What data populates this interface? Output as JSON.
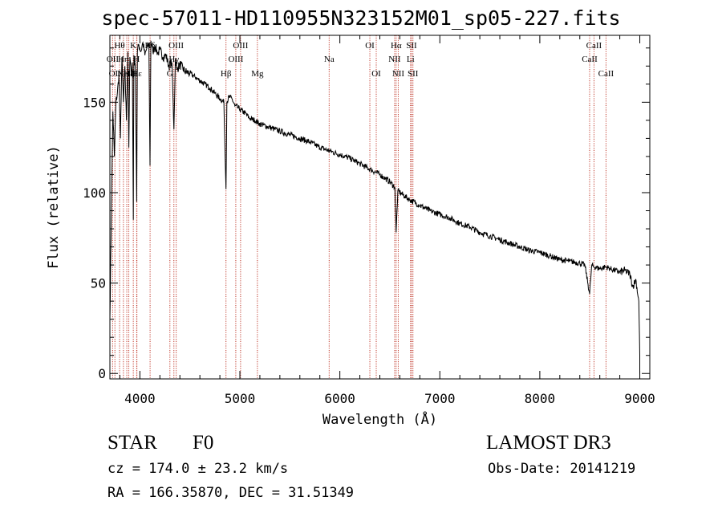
{
  "chart_data": {
    "type": "line",
    "title": "spec-57011-HD110955N323152M01_sp05-227.fits",
    "xlabel": "Wavelength (Å)",
    "ylabel": "Flux (relative)",
    "xlim": [
      3700,
      9100
    ],
    "ylim": [
      -3,
      187
    ],
    "x_ticks": [
      4000,
      5000,
      6000,
      7000,
      8000,
      9000
    ],
    "y_ticks": [
      0,
      50,
      100,
      150
    ],
    "series": [
      {
        "name": "flux",
        "x": [
          3700,
          3715,
          3730,
          3745,
          3760,
          3775,
          3790,
          3805,
          3820,
          3835,
          3850,
          3865,
          3880,
          3889,
          3900,
          3915,
          3925,
          3934,
          3940,
          3955,
          3968,
          3975,
          3990,
          4010,
          4030,
          4050,
          4070,
          4090,
          4101,
          4110,
          4130,
          4150,
          4180,
          4200,
          4230,
          4260,
          4290,
          4320,
          4340,
          4355,
          4370,
          4400,
          4450,
          4500,
          4550,
          4600,
          4650,
          4700,
          4750,
          4800,
          4840,
          4861,
          4870,
          4890,
          4920,
          4950,
          4980,
          5000,
          5050,
          5100,
          5150,
          5200,
          5300,
          5400,
          5500,
          5600,
          5700,
          5800,
          5900,
          6000,
          6100,
          6200,
          6300,
          6400,
          6500,
          6550,
          6563,
          6580,
          6650,
          6700,
          6800,
          6900,
          7000,
          7100,
          7200,
          7300,
          7400,
          7500,
          7600,
          7700,
          7800,
          7900,
          8000,
          8100,
          8200,
          8300,
          8400,
          8450,
          8498,
          8520,
          8542,
          8600,
          8662,
          8700,
          8800,
          8850,
          8900,
          8930,
          8960,
          8990,
          9000
        ],
        "y": [
          30,
          90,
          145,
          120,
          150,
          155,
          165,
          130,
          175,
          150,
          170,
          140,
          178,
          125,
          175,
          165,
          172,
          85,
          176,
          168,
          95,
          178,
          182,
          178,
          183,
          176,
          180,
          182,
          115,
          184,
          178,
          181,
          177,
          179,
          175,
          176,
          170,
          172,
          135,
          174,
          168,
          171,
          167,
          166,
          164,
          162,
          160,
          158,
          155,
          152,
          150,
          102,
          150,
          153,
          152,
          148,
          147,
          146,
          144,
          141,
          140,
          138,
          136,
          134,
          132,
          130,
          128,
          125,
          123,
          121,
          119,
          116,
          113,
          110,
          106,
          103,
          78,
          101,
          98,
          96,
          93,
          90,
          88,
          86,
          83,
          81,
          78,
          76,
          74,
          72,
          70,
          68,
          67,
          65,
          63,
          62,
          61,
          60,
          44,
          60,
          59,
          58,
          59,
          58,
          56,
          57,
          55,
          48,
          52,
          40,
          10
        ]
      }
    ],
    "lines": [
      {
        "wave": 3727,
        "label": "OII",
        "row": 1
      },
      {
        "wave": 3750,
        "label": "OII",
        "row": 2
      },
      {
        "wave": 3797,
        "label": "Hθ",
        "row": 0
      },
      {
        "wave": 3835,
        "label": "Hη",
        "row": 1
      },
      {
        "wave": 3869,
        "label": "NeIII",
        "row": 2
      },
      {
        "wave": 3889,
        "label": "Hζ",
        "row": 2
      },
      {
        "wave": 3934,
        "label": "K",
        "row": 0
      },
      {
        "wave": 3968,
        "label": "H",
        "row": 1
      },
      {
        "wave": 3970,
        "label": "Hε",
        "row": 2
      },
      {
        "wave": 4102,
        "label": "Hδ",
        "row": 0
      },
      {
        "wave": 4300,
        "label": "G",
        "row": 2
      },
      {
        "wave": 4340,
        "label": "Hγ",
        "row": 1
      },
      {
        "wave": 4363,
        "label": "OIII",
        "row": 0
      },
      {
        "wave": 4861,
        "label": "Hβ",
        "row": 2
      },
      {
        "wave": 4959,
        "label": "OIII",
        "row": 1
      },
      {
        "wave": 5007,
        "label": "OIII",
        "row": 0
      },
      {
        "wave": 5175,
        "label": "Mg",
        "row": 2
      },
      {
        "wave": 5893,
        "label": "Na",
        "row": 1
      },
      {
        "wave": 6300,
        "label": "OI",
        "row": 0
      },
      {
        "wave": 6364,
        "label": "OI",
        "row": 2
      },
      {
        "wave": 6548,
        "label": "NII",
        "row": 1
      },
      {
        "wave": 6563,
        "label": "Hα",
        "row": 0
      },
      {
        "wave": 6584,
        "label": "NII",
        "row": 2
      },
      {
        "wave": 6707,
        "label": "Li",
        "row": 1
      },
      {
        "wave": 6717,
        "label": "SII",
        "row": 0
      },
      {
        "wave": 6731,
        "label": "SII",
        "row": 2
      },
      {
        "wave": 8498,
        "label": "CaII",
        "row": 1
      },
      {
        "wave": 8542,
        "label": "CaII",
        "row": 0
      },
      {
        "wave": 8662,
        "label": "CaII",
        "row": 2
      }
    ]
  },
  "info": {
    "object_class": "STAR",
    "subclass": "F0",
    "survey": "LAMOST DR3",
    "redshift": "cz = 174.0 ± 23.2 km/s",
    "obs_date": "Obs-Date: 20141219",
    "coords": "RA = 166.35870, DEC =  31.51349"
  }
}
